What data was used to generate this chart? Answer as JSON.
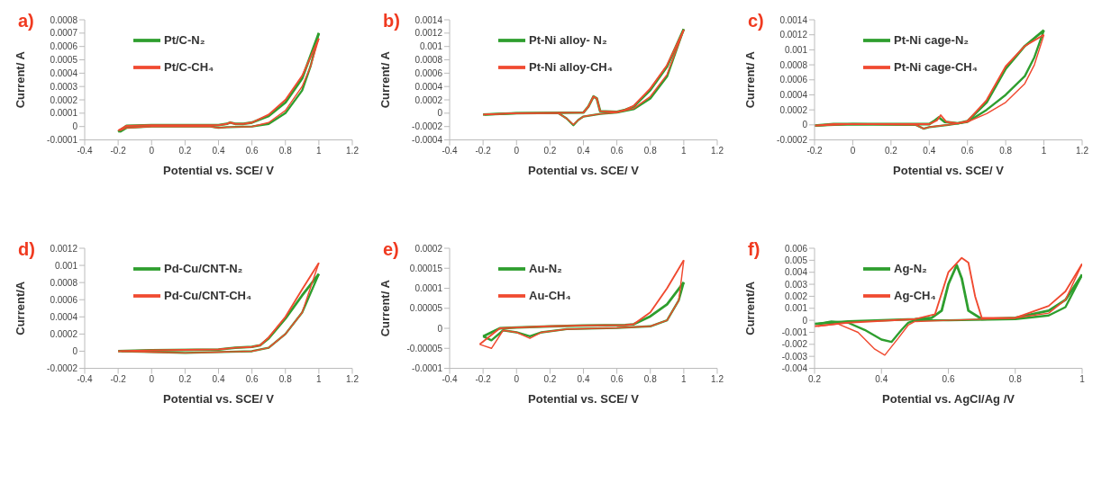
{
  "chart_data": [
    {
      "type": "line",
      "title": "a)",
      "xlabel": "Potential vs. SCE/ V",
      "ylabel": "Current/ A",
      "xlim": [
        -0.4,
        1.2
      ],
      "xticks": [
        -0.4,
        -0.2,
        0,
        0.2,
        0.4,
        0.6,
        0.8,
        1,
        1.2
      ],
      "ylim": [
        -0.0001,
        0.0008
      ],
      "yticks": [
        -0.0001,
        0,
        0.0001,
        0.0002,
        0.0003,
        0.0004,
        0.0005,
        0.0006,
        0.0007,
        0.0008
      ],
      "grid": false,
      "legend": "top left",
      "marker": "none",
      "series": [
        {
          "name": "Pt/C-N₂",
          "color": "#2e9e2e",
          "x": [
            -0.2,
            -0.15,
            0,
            0.4,
            0.45,
            0.47,
            0.5,
            0.55,
            0.6,
            0.7,
            0.8,
            0.9,
            1
          ],
          "values": [
            -4e-05,
            5e-06,
            1e-05,
            1e-05,
            2e-05,
            3e-05,
            2e-05,
            2e-05,
            3e-05,
            8e-05,
            0.00018,
            0.00036,
            0.0007
          ]
        },
        {
          "color": "#2e9e2e",
          "x": [
            -0.19,
            -0.15,
            0,
            0.2,
            0.35,
            0.4,
            0.45,
            0.6,
            0.7,
            0.8,
            0.9,
            0.95,
            1
          ],
          "values": [
            -4e-05,
            -1e-05,
            0,
            0,
            0,
            -1e-05,
            -5e-06,
            0,
            2e-05,
            0.0001,
            0.00027,
            0.00045,
            0.0007
          ]
        },
        {
          "name": "Pt/C-CH₄",
          "color": "#f04a30",
          "x": [
            -0.2,
            -0.15,
            0,
            0.4,
            0.45,
            0.47,
            0.5,
            0.55,
            0.6,
            0.7,
            0.8,
            0.9,
            1
          ],
          "values": [
            -3e-05,
            5e-06,
            1e-05,
            1e-05,
            2e-05,
            3e-05,
            2e-05,
            2e-05,
            3e-05,
            9e-05,
            0.0002,
            0.00038,
            0.00066
          ]
        },
        {
          "color": "#f04a30",
          "x": [
            -0.19,
            -0.15,
            0,
            0.2,
            0.35,
            0.4,
            0.45,
            0.6,
            0.7,
            0.8,
            0.9,
            0.95,
            1
          ],
          "values": [
            -3e-05,
            -1e-05,
            0,
            0,
            0,
            -1e-05,
            -5e-06,
            0,
            3e-05,
            0.00012,
            0.0003,
            0.00045,
            0.00066
          ]
        }
      ]
    },
    {
      "type": "line",
      "title": "b)",
      "xlabel": "Potential vs. SCE/ V",
      "ylabel": "Current/ A",
      "xlim": [
        -0.4,
        1.2
      ],
      "xticks": [
        -0.4,
        -0.2,
        0,
        0.2,
        0.4,
        0.6,
        0.8,
        1,
        1.2
      ],
      "ylim": [
        -0.0004,
        0.0014
      ],
      "yticks": [
        -0.0004,
        -0.0002,
        0,
        0.0002,
        0.0004,
        0.0006,
        0.0008,
        0.001,
        0.0012,
        0.0014
      ],
      "grid": false,
      "legend": "top left",
      "marker": "none",
      "series": [
        {
          "name": "Pt-Ni alloy- N₂",
          "color": "#2e9e2e",
          "x": [
            -0.2,
            0,
            0.4,
            0.43,
            0.46,
            0.48,
            0.5,
            0.6,
            0.65,
            0.7,
            0.8,
            0.9,
            1
          ],
          "values": [
            -2e-05,
            0,
            1e-05,
            0.0001,
            0.00025,
            0.00022,
            3e-05,
            2e-05,
            5e-05,
            0.0001,
            0.00035,
            0.0007,
            0.00126
          ]
        },
        {
          "color": "#2e9e2e",
          "x": [
            -0.19,
            0,
            0.25,
            0.3,
            0.34,
            0.37,
            0.4,
            0.5,
            0.6,
            0.7,
            0.8,
            0.9,
            1
          ],
          "values": [
            -2e-05,
            0,
            0,
            -8e-05,
            -0.00018,
            -0.0001,
            -5e-05,
            -1e-05,
            1e-05,
            6e-05,
            0.00022,
            0.00055,
            0.00126
          ]
        },
        {
          "name": "Pt-Ni alloy-CH₄",
          "color": "#f04a30",
          "x": [
            -0.2,
            0,
            0.4,
            0.43,
            0.46,
            0.48,
            0.5,
            0.6,
            0.65,
            0.7,
            0.8,
            0.9,
            1
          ],
          "values": [
            -2e-05,
            0,
            1e-05,
            0.0001,
            0.00025,
            0.00022,
            3e-05,
            2e-05,
            5e-05,
            0.00011,
            0.00037,
            0.00072,
            0.00125
          ]
        },
        {
          "color": "#f04a30",
          "x": [
            -0.19,
            0,
            0.25,
            0.3,
            0.34,
            0.37,
            0.4,
            0.5,
            0.6,
            0.7,
            0.8,
            0.9,
            1
          ],
          "values": [
            -2e-05,
            0,
            0,
            -8e-05,
            -0.00017,
            -0.0001,
            -5e-05,
            -1e-05,
            1e-05,
            7e-05,
            0.00025,
            0.00058,
            0.00125
          ]
        }
      ]
    },
    {
      "type": "line",
      "title": "c)",
      "xlabel": "Potential vs. SCE/ V",
      "ylabel": "Current/ A",
      "xlim": [
        -0.2,
        1.2
      ],
      "xticks": [
        -0.2,
        0,
        0.2,
        0.4,
        0.6,
        0.8,
        1,
        1.2
      ],
      "ylim": [
        -0.0002,
        0.0014
      ],
      "yticks": [
        -0.0002,
        0,
        0.0002,
        0.0004,
        0.0006,
        0.0008,
        0.001,
        0.0012,
        0.0014
      ],
      "grid": false,
      "legend": "top left",
      "marker": "none",
      "series": [
        {
          "name": "Pt-Ni cage-N₂",
          "color": "#2e9e2e",
          "x": [
            -0.2,
            -0.1,
            0.4,
            0.43,
            0.45,
            0.48,
            0.55,
            0.6,
            0.7,
            0.8,
            0.9,
            1
          ],
          "values": [
            -1e-05,
            1e-05,
            1e-05,
            6e-05,
            0.0001,
            4e-05,
            2e-05,
            5e-05,
            0.0003,
            0.00075,
            0.00105,
            0.00126
          ]
        },
        {
          "color": "#2e9e2e",
          "x": [
            -0.19,
            0,
            0.33,
            0.37,
            0.4,
            0.5,
            0.6,
            0.7,
            0.8,
            0.9,
            0.95,
            1
          ],
          "values": [
            -1e-05,
            1e-05,
            0,
            -5e-05,
            -3e-05,
            0,
            4e-05,
            0.0002,
            0.0004,
            0.00065,
            0.0009,
            0.00126
          ]
        },
        {
          "name": "Pt-Ni cage-CH₄",
          "color": "#f04a30",
          "x": [
            -0.2,
            -0.1,
            0.4,
            0.44,
            0.46,
            0.49,
            0.55,
            0.6,
            0.7,
            0.8,
            0.9,
            1
          ],
          "values": [
            -1e-05,
            1e-05,
            1e-05,
            6e-05,
            0.00013,
            4e-05,
            2e-05,
            5e-05,
            0.00033,
            0.00078,
            0.00105,
            0.0012
          ]
        },
        {
          "color": "#f04a30",
          "x": [
            -0.19,
            0,
            0.33,
            0.37,
            0.4,
            0.5,
            0.6,
            0.7,
            0.8,
            0.9,
            0.95,
            1
          ],
          "values": [
            -1e-05,
            1e-05,
            0,
            -5e-05,
            -3e-05,
            0,
            4e-05,
            0.00015,
            0.0003,
            0.00055,
            0.0008,
            0.0012
          ]
        }
      ]
    },
    {
      "type": "line",
      "title": "d)",
      "xlabel": "Potential vs. SCE/ V",
      "ylabel": "Current/A",
      "xlim": [
        -0.4,
        1.2
      ],
      "xticks": [
        -0.4,
        -0.2,
        0,
        0.2,
        0.4,
        0.6,
        0.8,
        1,
        1.2
      ],
      "ylim": [
        -0.0002,
        0.0012
      ],
      "yticks": [
        -0.0002,
        0,
        0.0002,
        0.0004,
        0.0006,
        0.0008,
        0.001,
        0.0012
      ],
      "grid": false,
      "legend": "top left",
      "marker": "none",
      "series": [
        {
          "name": "Pd-Cu/CNT-N₂",
          "color": "#2e9e2e",
          "x": [
            -0.2,
            0,
            0.4,
            0.5,
            0.6,
            0.65,
            0.7,
            0.8,
            0.9,
            1
          ],
          "values": [
            0,
            1e-05,
            2e-05,
            4e-05,
            5e-05,
            7e-05,
            0.00015,
            0.00038,
            0.00065,
            0.0009
          ]
        },
        {
          "color": "#2e9e2e",
          "x": [
            -0.18,
            0,
            0.2,
            0.4,
            0.6,
            0.7,
            0.8,
            0.9,
            1
          ],
          "values": [
            0,
            -1e-05,
            -2e-05,
            -1e-05,
            0,
            4e-05,
            0.0002,
            0.00045,
            0.0009
          ]
        },
        {
          "name": "Pd-Cu/CNT-CH₄",
          "color": "#f04a30",
          "x": [
            -0.2,
            0,
            0.4,
            0.5,
            0.6,
            0.65,
            0.7,
            0.8,
            0.9,
            1
          ],
          "values": [
            0,
            1e-05,
            2e-05,
            4e-05,
            5e-05,
            7e-05,
            0.00016,
            0.0004,
            0.00072,
            0.00103
          ]
        },
        {
          "color": "#f04a30",
          "x": [
            -0.18,
            0,
            0.2,
            0.4,
            0.6,
            0.7,
            0.8,
            0.9,
            1
          ],
          "values": [
            0,
            -1e-05,
            -2e-05,
            -1e-05,
            0,
            4e-05,
            0.0002,
            0.00045,
            0.00103
          ]
        }
      ]
    },
    {
      "type": "line",
      "title": "e)",
      "xlabel": "Potential vs. SCE/ V",
      "ylabel": "Current/ A",
      "xlim": [
        -0.4,
        1.2
      ],
      "xticks": [
        -0.4,
        -0.2,
        0,
        0.2,
        0.4,
        0.6,
        0.8,
        1,
        1.2
      ],
      "ylim": [
        -0.0001,
        0.0002
      ],
      "yticks": [
        -0.0001,
        {
          "value": -5e-05,
          "label": "-0.00005"
        },
        0,
        {
          "value": 5e-05,
          "label": "0.00005"
        },
        0.0001,
        0.00015,
        0.0002
      ],
      "grid": false,
      "legend": "top left",
      "marker": "none",
      "series": [
        {
          "name": "Au-N₂",
          "color": "#2e9e2e",
          "x": [
            -0.2,
            -0.1,
            0,
            0.2,
            0.4,
            0.65,
            0.7,
            0.8,
            0.9,
            1
          ],
          "values": [
            -2e-05,
            0,
            2e-06,
            5e-06,
            7e-06,
            8e-06,
            1e-05,
            3e-05,
            6e-05,
            0.000115
          ]
        },
        {
          "color": "#2e9e2e",
          "x": [
            -0.2,
            -0.15,
            -0.08,
            0,
            0.08,
            0.15,
            0.3,
            0.6,
            0.8,
            0.9,
            0.97,
            1
          ],
          "values": [
            -2e-05,
            -3e-05,
            -5e-06,
            -1e-05,
            -2e-05,
            -1e-05,
            -2e-06,
            1e-06,
            5e-06,
            2e-05,
            7e-05,
            0.000115
          ]
        },
        {
          "name": "Au-CH₄",
          "color": "#f04a30",
          "x": [
            -0.22,
            -0.1,
            0,
            0.2,
            0.4,
            0.65,
            0.7,
            0.8,
            0.9,
            1
          ],
          "values": [
            -4e-05,
            0,
            2e-06,
            5e-06,
            7e-06,
            8e-06,
            1e-05,
            4e-05,
            0.0001,
            0.00017
          ]
        },
        {
          "color": "#f04a30",
          "x": [
            -0.22,
            -0.15,
            -0.08,
            0,
            0.08,
            0.15,
            0.3,
            0.6,
            0.8,
            0.9,
            0.97,
            1
          ],
          "values": [
            -4e-05,
            -5e-05,
            -5e-06,
            -1e-05,
            -2.5e-05,
            -1e-05,
            -2e-06,
            1e-06,
            5e-06,
            2e-05,
            7e-05,
            0.00017
          ]
        }
      ]
    },
    {
      "type": "line",
      "title": "f)",
      "xlabel": "Potential vs. AgCl/Ag /V",
      "ylabel": "Current/A",
      "xlim": [
        0.2,
        1
      ],
      "xticks": [
        0.2,
        0.4,
        0.6,
        0.8,
        1
      ],
      "ylim": [
        -0.004,
        0.006
      ],
      "yticks": [
        -0.004,
        -0.003,
        -0.002,
        -0.001,
        0,
        0.001,
        0.002,
        0.003,
        0.004,
        0.005,
        0.006
      ],
      "grid": false,
      "legend": "top left",
      "marker": "none",
      "series": [
        {
          "name": "Ag-N₂",
          "color": "#2e9e2e",
          "x": [
            0.2,
            0.3,
            0.4,
            0.5,
            0.55,
            0.58,
            0.6,
            0.625,
            0.64,
            0.66,
            0.7,
            0.8,
            0.9,
            0.95,
            1
          ],
          "values": [
            -0.0003,
            -0.0001,
            0,
            0.0001,
            0.0002,
            0.0008,
            0.003,
            0.0046,
            0.0035,
            0.0008,
            0.0001,
            0.0002,
            0.0008,
            0.0017,
            0.0038
          ]
        },
        {
          "color": "#2e9e2e",
          "x": [
            0.21,
            0.25,
            0.3,
            0.35,
            0.4,
            0.43,
            0.46,
            0.48,
            0.5,
            0.6,
            0.8,
            0.9,
            0.95,
            1
          ],
          "values": [
            -0.0003,
            -0.0001,
            -0.0002,
            -0.0008,
            -0.0016,
            -0.0018,
            -0.0008,
            -0.0002,
            0,
            0,
            0.0001,
            0.0004,
            0.0011,
            0.0038
          ]
        },
        {
          "name": "Ag-CH₄",
          "color": "#f04a30",
          "x": [
            0.2,
            0.3,
            0.5,
            0.56,
            0.6,
            0.64,
            0.66,
            0.68,
            0.7,
            0.8,
            0.9,
            0.95,
            1
          ],
          "values": [
            -0.0005,
            -0.0002,
            0.0001,
            0.0005,
            0.004,
            0.0052,
            0.0048,
            0.002,
            0.0002,
            0.0002,
            0.0012,
            0.0024,
            0.0047
          ]
        },
        {
          "color": "#f04a30",
          "x": [
            0.21,
            0.27,
            0.33,
            0.38,
            0.41,
            0.45,
            0.48,
            0.5,
            0.6,
            0.8,
            0.9,
            0.95,
            1
          ],
          "values": [
            -0.0005,
            -0.0003,
            -0.001,
            -0.0024,
            -0.0029,
            -0.0015,
            -0.0004,
            -0.0001,
            0,
            0.0002,
            0.0006,
            0.0017,
            0.0047
          ]
        }
      ]
    }
  ]
}
